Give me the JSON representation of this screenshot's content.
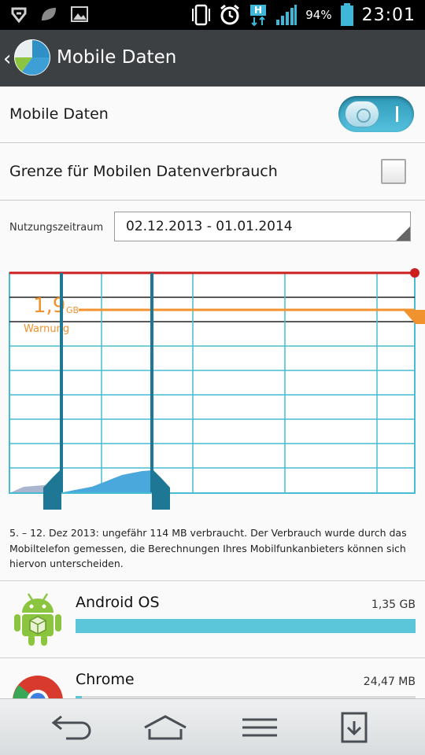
{
  "status_bar": {
    "battery_percent": "94%",
    "time": "23:01",
    "network_type": "H",
    "icons": [
      "signal-icon",
      "leaf-icon",
      "picture-icon",
      "phone-vibrate-icon",
      "alarm-icon",
      "network-h-icon",
      "signal-bars-icon",
      "battery-icon"
    ]
  },
  "action_bar": {
    "title": "Mobile Daten"
  },
  "mobile_data": {
    "label": "Mobile Daten",
    "enabled": true
  },
  "limit": {
    "label": "Grenze für Mobilen Datenverbrauch",
    "checked": false
  },
  "period": {
    "label": "Nutzungszeitraum",
    "value": "02.12.2013 - 01.01.2014"
  },
  "chart": {
    "warning_value": "1,9",
    "warning_unit": "GB",
    "warning_label": "Warnung",
    "colors": {
      "limit": "#cc1f1f",
      "warning": "#f0922e",
      "usage": "#4aa8dc",
      "handle": "#1e7794",
      "grid": "#47bcd3"
    }
  },
  "chart_data": {
    "type": "area",
    "title": "",
    "xlabel": "",
    "ylabel": "",
    "series": [
      {
        "values": [
          0.0,
          0.01,
          0.02,
          0.03,
          0.05,
          0.07,
          0.09,
          0.1,
          0.11,
          0.114
        ]
      }
    ],
    "warning_line": 1.9
  },
  "description": "5. – 12. Dez 2013: ungefähr 114 MB verbraucht. Der Verbrauch wurde durch das Mobiltelefon gemessen, die Berechnungen Ihres Mobilfunkanbieters können sich hiervon unterscheiden.",
  "apps": [
    {
      "name": "Android OS",
      "size": "1,35 GB",
      "fraction": 1.0
    },
    {
      "name": "Chrome",
      "size": "24,47 MB",
      "fraction": 0.018
    }
  ],
  "nav_bar": {
    "buttons": [
      "back-icon",
      "home-icon",
      "menu-icon",
      "notification-icon"
    ]
  }
}
